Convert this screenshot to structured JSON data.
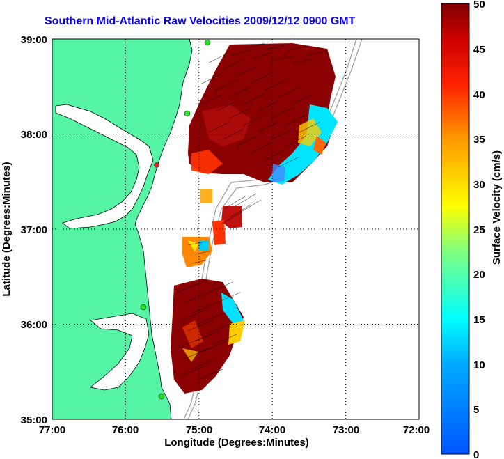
{
  "title": "Southern Mid-Atlantic Raw Velocities 2009/12/12 0900 GMT",
  "x_axis": {
    "label": "Longitude (Degrees:Minutes)",
    "ticks": [
      "77:00",
      "76:00",
      "75:00",
      "74:00",
      "73:00",
      "72:00"
    ]
  },
  "y_axis": {
    "label": "Latitude (Degrees:Minutes)",
    "ticks": [
      "39:00",
      "38:00",
      "37:00",
      "36:00",
      "35:00"
    ]
  },
  "colorbar": {
    "label": "Surface Velocity (cm/s)",
    "ticks": [
      "50",
      "45",
      "40",
      "35",
      "30",
      "25",
      "20",
      "15",
      "10",
      "5",
      "0"
    ],
    "range": [
      0,
      50
    ]
  },
  "colors": {
    "title": "#0a00ff",
    "land": "#55f5a5",
    "coast": "#000000",
    "bathymetry": "#9a9a9a",
    "station": "#22dd22",
    "station_alt": "#ee2222"
  },
  "grid": true
}
